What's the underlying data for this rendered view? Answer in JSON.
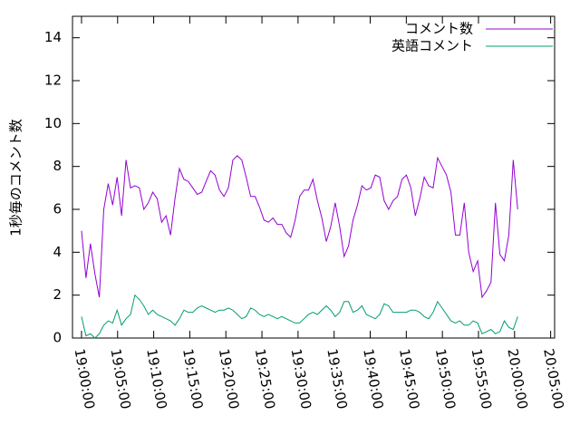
{
  "chart_data": {
    "type": "line",
    "y_label": "1秒毎のコメント数",
    "legend": "top right",
    "grid": false,
    "ylim": [
      0,
      15
    ],
    "yticks": [
      0,
      2,
      4,
      6,
      8,
      10,
      12,
      14
    ],
    "xlim": [
      "18:58:45",
      "20:05:33"
    ],
    "xticks": [
      "19:00:00",
      "19:05:00",
      "19:10:00",
      "19:15:00",
      "19:20:00",
      "19:25:00",
      "19:30:00",
      "19:35:00",
      "19:40:00",
      "19:45:00",
      "19:50:00",
      "19:55:00",
      "20:00:00",
      "20:05:00"
    ],
    "x": [
      "19:00:00",
      "19:00:37",
      "19:01:14",
      "19:01:51",
      "19:02:28",
      "19:03:05",
      "19:03:42",
      "19:04:19",
      "19:04:56",
      "19:05:33",
      "19:06:10",
      "19:06:47",
      "19:07:24",
      "19:08:01",
      "19:08:38",
      "19:09:15",
      "19:09:52",
      "19:10:29",
      "19:11:06",
      "19:11:43",
      "19:12:20",
      "19:12:57",
      "19:13:34",
      "19:14:11",
      "19:14:48",
      "19:15:25",
      "19:16:02",
      "19:16:39",
      "19:17:16",
      "19:17:53",
      "19:18:30",
      "19:19:07",
      "19:19:44",
      "19:20:21",
      "19:20:58",
      "19:21:35",
      "19:22:12",
      "19:22:49",
      "19:23:26",
      "19:24:03",
      "19:24:40",
      "19:25:17",
      "19:25:54",
      "19:26:31",
      "19:27:08",
      "19:27:45",
      "19:28:22",
      "19:28:59",
      "19:29:36",
      "19:30:13",
      "19:30:50",
      "19:31:27",
      "19:32:04",
      "19:32:41",
      "19:33:18",
      "19:33:55",
      "19:34:32",
      "19:35:09",
      "19:35:46",
      "19:36:23",
      "19:37:00",
      "19:37:37",
      "19:38:14",
      "19:38:51",
      "19:39:28",
      "19:40:05",
      "19:40:42",
      "19:41:19",
      "19:41:56",
      "19:42:33",
      "19:43:10",
      "19:43:47",
      "19:44:24",
      "19:45:01",
      "19:45:38",
      "19:46:15",
      "19:46:52",
      "19:47:29",
      "19:48:06",
      "19:48:43",
      "19:49:20",
      "19:49:57",
      "19:50:34",
      "19:51:11",
      "19:51:48",
      "19:52:25",
      "19:53:02",
      "19:53:39",
      "19:54:16",
      "19:54:53",
      "19:55:30",
      "19:56:07",
      "19:56:44",
      "19:57:21",
      "19:57:58",
      "19:58:35",
      "19:59:12",
      "19:59:49",
      "20:00:26"
    ],
    "series": [
      {
        "name": "コメント数",
        "color": "#9400d3",
        "values": [
          5.0,
          2.8,
          4.4,
          3.0,
          1.9,
          6.0,
          7.2,
          6.2,
          7.5,
          5.7,
          8.3,
          7.0,
          7.1,
          7.0,
          6.0,
          6.3,
          6.8,
          6.5,
          5.4,
          5.7,
          4.8,
          6.5,
          7.9,
          7.4,
          7.3,
          7.0,
          6.7,
          6.8,
          7.3,
          7.8,
          7.6,
          6.9,
          6.6,
          7.0,
          8.3,
          8.5,
          8.3,
          7.5,
          6.6,
          6.6,
          6.1,
          5.5,
          5.4,
          5.6,
          5.3,
          5.3,
          4.9,
          4.7,
          5.5,
          6.6,
          6.9,
          6.9,
          7.4,
          6.4,
          5.6,
          4.5,
          5.2,
          6.3,
          5.2,
          3.8,
          4.3,
          5.5,
          6.2,
          7.1,
          6.9,
          7.0,
          7.6,
          7.5,
          6.4,
          6.0,
          6.4,
          6.6,
          7.4,
          7.6,
          7.0,
          5.7,
          6.5,
          7.5,
          7.1,
          7.0,
          8.4,
          8.0,
          7.6,
          6.8,
          4.8,
          4.8,
          6.3,
          4.0,
          3.1,
          3.6,
          1.9,
          2.2,
          2.6,
          6.3,
          3.9,
          3.6,
          4.8,
          8.3,
          6.0
        ]
      },
      {
        "name": "英語コメント",
        "color": "#009e73",
        "values": [
          1.0,
          0.1,
          0.2,
          0.0,
          0.2,
          0.6,
          0.8,
          0.7,
          1.3,
          0.6,
          0.9,
          1.1,
          2.0,
          1.8,
          1.5,
          1.1,
          1.3,
          1.1,
          1.0,
          0.9,
          0.8,
          0.6,
          0.9,
          1.3,
          1.2,
          1.2,
          1.4,
          1.5,
          1.4,
          1.3,
          1.2,
          1.3,
          1.3,
          1.4,
          1.3,
          1.1,
          0.9,
          1.0,
          1.4,
          1.3,
          1.1,
          1.0,
          1.1,
          1.0,
          0.9,
          1.0,
          0.9,
          0.8,
          0.7,
          0.7,
          0.9,
          1.1,
          1.2,
          1.1,
          1.3,
          1.5,
          1.3,
          1.0,
          1.2,
          1.7,
          1.7,
          1.2,
          1.3,
          1.5,
          1.1,
          1.0,
          0.9,
          1.1,
          1.6,
          1.5,
          1.2,
          1.2,
          1.2,
          1.2,
          1.3,
          1.3,
          1.2,
          1.0,
          0.9,
          1.2,
          1.7,
          1.4,
          1.1,
          0.8,
          0.7,
          0.8,
          0.6,
          0.6,
          0.8,
          0.7,
          0.2,
          0.3,
          0.4,
          0.2,
          0.3,
          0.8,
          0.5,
          0.4,
          1.0
        ]
      }
    ]
  }
}
